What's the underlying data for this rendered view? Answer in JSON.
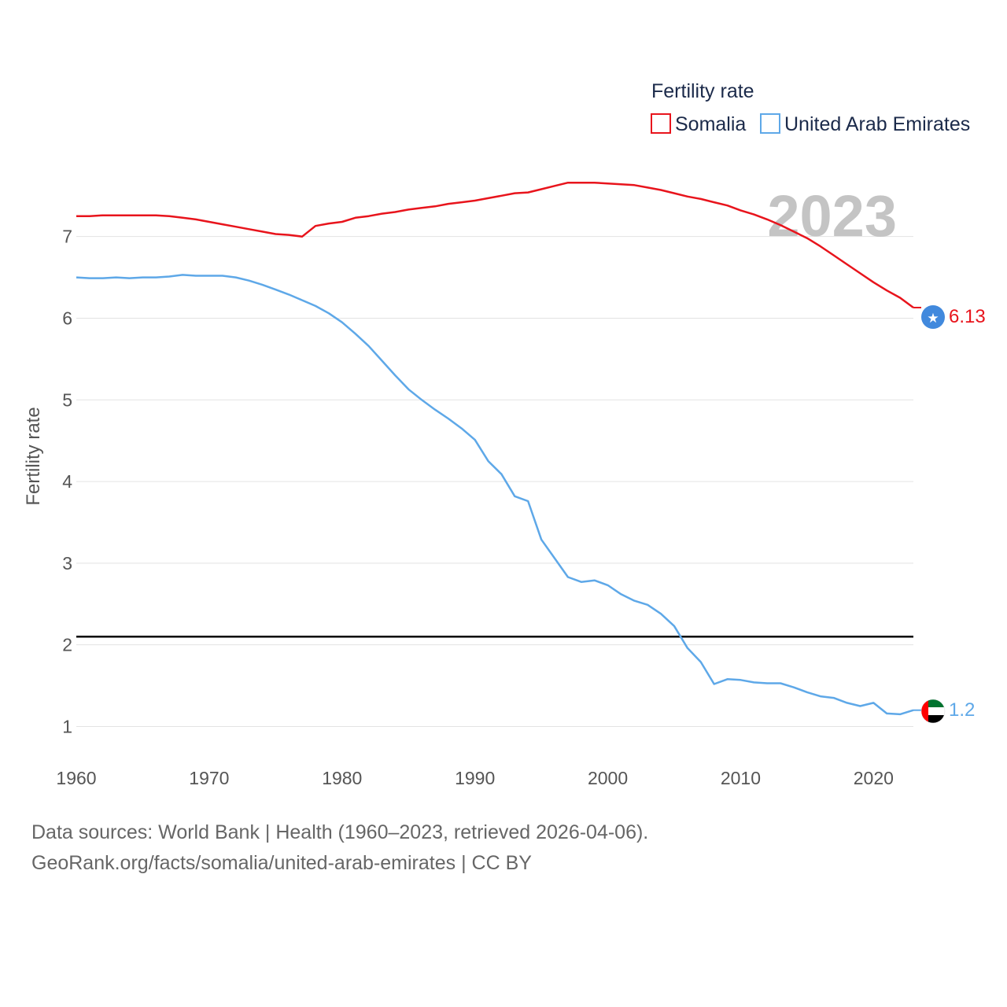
{
  "chart_data": {
    "type": "line",
    "title": "Fertility rate",
    "ylabel": "Fertility rate",
    "xlabel": "",
    "year_label": "2023",
    "xlim": [
      1960,
      2023
    ],
    "ylim": [
      0.6,
      7.7
    ],
    "x_ticks": [
      1960,
      1970,
      1980,
      1990,
      2000,
      2010,
      2020
    ],
    "y_ticks": [
      1,
      2,
      3,
      4,
      5,
      6,
      7
    ],
    "reference_line": 2.1,
    "x": [
      1960,
      1961,
      1962,
      1963,
      1964,
      1965,
      1966,
      1967,
      1968,
      1969,
      1970,
      1971,
      1972,
      1973,
      1974,
      1975,
      1976,
      1977,
      1978,
      1979,
      1980,
      1981,
      1982,
      1983,
      1984,
      1985,
      1986,
      1987,
      1988,
      1989,
      1990,
      1991,
      1992,
      1993,
      1994,
      1995,
      1996,
      1997,
      1998,
      1999,
      2000,
      2001,
      2002,
      2003,
      2004,
      2005,
      2006,
      2007,
      2008,
      2009,
      2010,
      2011,
      2012,
      2013,
      2014,
      2015,
      2016,
      2017,
      2018,
      2019,
      2020,
      2021,
      2022,
      2023
    ],
    "series": [
      {
        "name": "Somalia",
        "color": "#e8141c",
        "end_label": "6.13",
        "values": [
          7.25,
          7.25,
          7.26,
          7.26,
          7.26,
          7.26,
          7.26,
          7.25,
          7.23,
          7.21,
          7.18,
          7.15,
          7.12,
          7.09,
          7.06,
          7.03,
          7.02,
          7.0,
          7.13,
          7.16,
          7.18,
          7.23,
          7.25,
          7.28,
          7.3,
          7.33,
          7.35,
          7.37,
          7.4,
          7.42,
          7.44,
          7.47,
          7.5,
          7.53,
          7.54,
          7.58,
          7.62,
          7.66,
          7.66,
          7.66,
          7.65,
          7.64,
          7.63,
          7.6,
          7.57,
          7.53,
          7.49,
          7.46,
          7.42,
          7.38,
          7.32,
          7.27,
          7.21,
          7.14,
          7.06,
          6.98,
          6.88,
          6.77,
          6.66,
          6.55,
          6.44,
          6.34,
          6.25,
          6.13
        ]
      },
      {
        "name": "United Arab Emirates",
        "color": "#5ea8e8",
        "end_label": "1.2",
        "values": [
          6.5,
          6.49,
          6.49,
          6.5,
          6.49,
          6.5,
          6.5,
          6.51,
          6.53,
          6.52,
          6.52,
          6.52,
          6.5,
          6.46,
          6.41,
          6.35,
          6.29,
          6.22,
          6.15,
          6.06,
          5.95,
          5.81,
          5.66,
          5.48,
          5.3,
          5.13,
          5.0,
          4.88,
          4.77,
          4.65,
          4.51,
          4.25,
          4.09,
          3.82,
          3.76,
          3.29,
          3.06,
          2.83,
          2.77,
          2.79,
          2.73,
          2.62,
          2.54,
          2.49,
          2.38,
          2.23,
          1.96,
          1.79,
          1.52,
          1.58,
          1.57,
          1.54,
          1.53,
          1.53,
          1.48,
          1.42,
          1.37,
          1.35,
          1.29,
          1.25,
          1.29,
          1.16,
          1.15,
          1.2
        ]
      }
    ]
  },
  "legend": {
    "title": "Fertility rate",
    "items": [
      "Somalia",
      "United Arab Emirates"
    ]
  },
  "footer": {
    "line1": "Data sources: World Bank | Health (1960–2023, retrieved 2026-04-06).",
    "line2": "GeoRank.org/facts/somalia/united-arab-emirates | CC BY"
  }
}
